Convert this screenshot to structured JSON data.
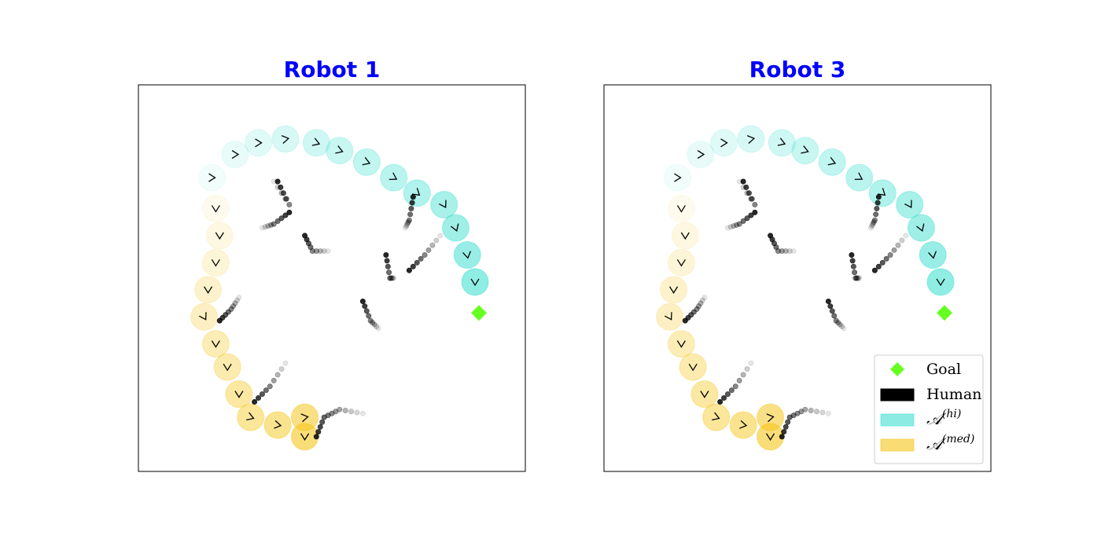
{
  "colors": {
    "title": "#0000ff",
    "hi": "#40e0d0",
    "med": "#f5c518",
    "human": "#000000",
    "goal": "#66ff22",
    "axes": "#000000"
  },
  "chart_data": [
    {
      "type": "scatter",
      "title": "Robot 1",
      "xlim": [
        0,
        100
      ],
      "ylim": [
        0,
        100
      ],
      "grid": false,
      "ticks": false,
      "goal": {
        "x": 88,
        "y": 41
      },
      "robot_path": [
        {
          "x": 19,
          "y": 76,
          "heading": 0,
          "set": "hi"
        },
        {
          "x": 20,
          "y": 68,
          "heading": 90,
          "set": "med"
        },
        {
          "x": 21,
          "y": 61,
          "heading": 90,
          "set": "med"
        },
        {
          "x": 20,
          "y": 54,
          "heading": 90,
          "set": "med"
        },
        {
          "x": 18,
          "y": 47,
          "heading": 90,
          "set": "med"
        },
        {
          "x": 17,
          "y": 40,
          "heading": 60,
          "set": "med"
        },
        {
          "x": 20,
          "y": 33,
          "heading": 90,
          "set": "med"
        },
        {
          "x": 23,
          "y": 27,
          "heading": 90,
          "set": "med"
        },
        {
          "x": 26,
          "y": 20,
          "heading": 90,
          "set": "med"
        },
        {
          "x": 29,
          "y": 14,
          "heading": 20,
          "set": "med"
        },
        {
          "x": 36,
          "y": 12,
          "heading": 10,
          "set": "med"
        },
        {
          "x": 43,
          "y": 14,
          "heading": -10,
          "set": "med"
        },
        {
          "x": 43,
          "y": 9,
          "heading": 90,
          "set": "med"
        },
        {
          "x": 25,
          "y": 82,
          "heading": 0,
          "set": "hi"
        },
        {
          "x": 31,
          "y": 85,
          "heading": 0,
          "set": "hi"
        },
        {
          "x": 38,
          "y": 86,
          "heading": -10,
          "set": "hi"
        },
        {
          "x": 46,
          "y": 85,
          "heading": 20,
          "set": "hi"
        },
        {
          "x": 52,
          "y": 83,
          "heading": 20,
          "set": "hi"
        },
        {
          "x": 59,
          "y": 80,
          "heading": 20,
          "set": "hi"
        },
        {
          "x": 66,
          "y": 76,
          "heading": 30,
          "set": "hi"
        },
        {
          "x": 72,
          "y": 72,
          "heading": 40,
          "set": "hi"
        },
        {
          "x": 79,
          "y": 69,
          "heading": 60,
          "set": "hi"
        },
        {
          "x": 82,
          "y": 63,
          "heading": 70,
          "set": "hi"
        },
        {
          "x": 85,
          "y": 56,
          "heading": 80,
          "set": "hi"
        },
        {
          "x": 87,
          "y": 49,
          "heading": 90,
          "set": "hi"
        }
      ],
      "humans": [
        {
          "points": [
            [
              36,
              75
            ],
            [
              39,
              69
            ],
            [
              35,
              75
            ]
          ]
        },
        {
          "points": [
            [
              39,
              67
            ],
            [
              35,
              64
            ],
            [
              32,
              63
            ]
          ]
        },
        {
          "points": [
            [
              43,
              61
            ],
            [
              45,
              57
            ],
            [
              49,
              57
            ]
          ]
        },
        {
          "points": [
            [
              64,
              56
            ],
            [
              65,
              50
            ],
            [
              66,
              50
            ]
          ]
        },
        {
          "points": [
            [
              70,
              52
            ],
            [
              74,
              56
            ],
            [
              78,
              61
            ]
          ]
        },
        {
          "points": [
            [
              71,
              71
            ],
            [
              70,
              65
            ],
            [
              69,
              63
            ]
          ]
        },
        {
          "points": [
            [
              21,
              39
            ],
            [
              24,
              42
            ],
            [
              26,
              45
            ]
          ]
        },
        {
          "points": [
            [
              58,
              44
            ],
            [
              60,
              39
            ],
            [
              62,
              37
            ]
          ]
        },
        {
          "points": [
            [
              30,
              18
            ],
            [
              34,
              22
            ],
            [
              38,
              28
            ]
          ]
        },
        {
          "points": [
            [
              46,
              9
            ],
            [
              48,
              14
            ],
            [
              52,
              16
            ],
            [
              58,
              15
            ]
          ]
        }
      ]
    },
    {
      "type": "scatter",
      "title": "Robot 3",
      "xlim": [
        0,
        100
      ],
      "ylim": [
        0,
        100
      ],
      "grid": false,
      "ticks": false,
      "goal": {
        "x": 88,
        "y": 41
      },
      "robot_path": [
        {
          "x": 19,
          "y": 76,
          "heading": 0,
          "set": "hi"
        },
        {
          "x": 20,
          "y": 68,
          "heading": 90,
          "set": "med"
        },
        {
          "x": 21,
          "y": 61,
          "heading": 90,
          "set": "med"
        },
        {
          "x": 20,
          "y": 54,
          "heading": 90,
          "set": "med"
        },
        {
          "x": 18,
          "y": 47,
          "heading": 90,
          "set": "med"
        },
        {
          "x": 17,
          "y": 40,
          "heading": 60,
          "set": "med"
        },
        {
          "x": 20,
          "y": 33,
          "heading": 90,
          "set": "med"
        },
        {
          "x": 23,
          "y": 27,
          "heading": 90,
          "set": "med"
        },
        {
          "x": 26,
          "y": 20,
          "heading": 90,
          "set": "med"
        },
        {
          "x": 29,
          "y": 14,
          "heading": 20,
          "set": "med"
        },
        {
          "x": 36,
          "y": 12,
          "heading": 10,
          "set": "med"
        },
        {
          "x": 43,
          "y": 14,
          "heading": -10,
          "set": "med"
        },
        {
          "x": 43,
          "y": 9,
          "heading": 90,
          "set": "med"
        },
        {
          "x": 25,
          "y": 82,
          "heading": 0,
          "set": "hi"
        },
        {
          "x": 31,
          "y": 85,
          "heading": 0,
          "set": "hi"
        },
        {
          "x": 38,
          "y": 86,
          "heading": -10,
          "set": "hi"
        },
        {
          "x": 46,
          "y": 85,
          "heading": 20,
          "set": "hi"
        },
        {
          "x": 52,
          "y": 83,
          "heading": 20,
          "set": "hi"
        },
        {
          "x": 59,
          "y": 80,
          "heading": 20,
          "set": "hi"
        },
        {
          "x": 66,
          "y": 76,
          "heading": 30,
          "set": "hi"
        },
        {
          "x": 72,
          "y": 72,
          "heading": 40,
          "set": "hi"
        },
        {
          "x": 79,
          "y": 69,
          "heading": 60,
          "set": "hi"
        },
        {
          "x": 82,
          "y": 63,
          "heading": 70,
          "set": "hi"
        },
        {
          "x": 85,
          "y": 56,
          "heading": 80,
          "set": "hi"
        },
        {
          "x": 87,
          "y": 49,
          "heading": 90,
          "set": "hi"
        }
      ],
      "humans": [
        {
          "points": [
            [
              36,
              75
            ],
            [
              39,
              69
            ],
            [
              35,
              75
            ]
          ]
        },
        {
          "points": [
            [
              39,
              67
            ],
            [
              35,
              64
            ],
            [
              32,
              63
            ]
          ]
        },
        {
          "points": [
            [
              43,
              61
            ],
            [
              45,
              57
            ],
            [
              49,
              57
            ]
          ]
        },
        {
          "points": [
            [
              64,
              56
            ],
            [
              65,
              50
            ],
            [
              66,
              50
            ]
          ]
        },
        {
          "points": [
            [
              70,
              52
            ],
            [
              74,
              56
            ],
            [
              78,
              61
            ]
          ]
        },
        {
          "points": [
            [
              71,
              71
            ],
            [
              70,
              65
            ],
            [
              69,
              63
            ]
          ]
        },
        {
          "points": [
            [
              21,
              39
            ],
            [
              24,
              42
            ],
            [
              26,
              45
            ]
          ]
        },
        {
          "points": [
            [
              58,
              44
            ],
            [
              60,
              39
            ],
            [
              62,
              37
            ]
          ]
        },
        {
          "points": [
            [
              30,
              18
            ],
            [
              34,
              22
            ],
            [
              38,
              28
            ]
          ]
        },
        {
          "points": [
            [
              46,
              9
            ],
            [
              48,
              14
            ],
            [
              52,
              16
            ],
            [
              58,
              15
            ]
          ]
        }
      ],
      "legend": {
        "placement": "bottom-right",
        "entries": [
          {
            "key": "goal",
            "label": "Goal"
          },
          {
            "key": "human",
            "label": "Human"
          },
          {
            "key": "hi",
            "label": "𝒜",
            "sup": "(hi)"
          },
          {
            "key": "med",
            "label": "𝒜",
            "sup": "(med)"
          }
        ]
      }
    }
  ]
}
